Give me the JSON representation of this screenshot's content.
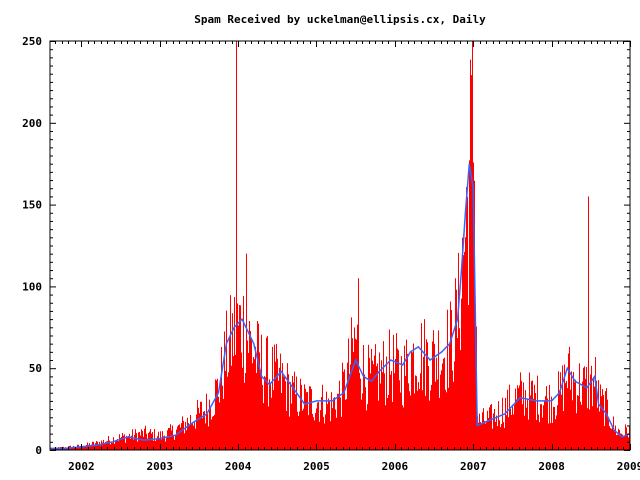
{
  "chart_data": {
    "type": "bar",
    "title": "Spam Received by uckelman@ellipsis.cx, Daily",
    "xlabel": "",
    "ylabel": "",
    "xlim": [
      2001.6,
      2009.0
    ],
    "ylim": [
      0,
      250
    ],
    "x_ticks": [
      2002,
      2003,
      2004,
      2005,
      2006,
      2007,
      2008,
      2009
    ],
    "y_ticks": [
      0,
      50,
      100,
      150,
      200,
      250
    ],
    "grid": false,
    "legend": "none",
    "colors": {
      "bars": "#ff0000",
      "average_line": "#3366ff",
      "axes": "#000000",
      "background": "#ffffff"
    },
    "series": [
      {
        "style": "bars",
        "x": [
          2001.6,
          2001.8,
          2002.0,
          2002.2,
          2002.4,
          2002.6,
          2002.8,
          2003.0,
          2003.2,
          2003.4,
          2003.6,
          2003.75,
          2003.85,
          2003.95,
          2004.05,
          2004.2,
          2004.3,
          2004.4,
          2004.55,
          2004.7,
          2004.85,
          2005.0,
          2005.2,
          2005.35,
          2005.5,
          2005.6,
          2005.7,
          2005.8,
          2005.95,
          2006.1,
          2006.2,
          2006.3,
          2006.45,
          2006.6,
          2006.7,
          2006.8,
          2006.85,
          2006.9,
          2006.95,
          2007.0,
          2007.05,
          2007.2,
          2007.4,
          2007.6,
          2007.8,
          2008.0,
          2008.1,
          2008.2,
          2008.3,
          2008.45,
          2008.55,
          2008.6,
          2008.7,
          2008.8,
          2008.9,
          2009.0
        ],
        "y": [
          1,
          2,
          3,
          5,
          8,
          10,
          12,
          10,
          14,
          22,
          30,
          45,
          70,
          85,
          90,
          70,
          60,
          55,
          50,
          40,
          35,
          35,
          32,
          45,
          80,
          55,
          50,
          55,
          60,
          55,
          65,
          70,
          65,
          70,
          75,
          95,
          130,
          160,
          200,
          240,
          20,
          22,
          30,
          40,
          38,
          35,
          40,
          55,
          48,
          45,
          50,
          35,
          30,
          15,
          12,
          15
        ],
        "peaks": [
          {
            "x": 2003.97,
            "y": 250
          },
          {
            "x": 2006.98,
            "y": 250
          },
          {
            "x": 2008.47,
            "y": 155
          },
          {
            "x": 2004.1,
            "y": 120
          },
          {
            "x": 2005.53,
            "y": 105
          }
        ]
      },
      {
        "style": "line",
        "x": [
          2001.6,
          2001.8,
          2002.0,
          2002.2,
          2002.4,
          2002.6,
          2002.8,
          2003.0,
          2003.2,
          2003.4,
          2003.6,
          2003.75,
          2003.85,
          2003.95,
          2004.05,
          2004.2,
          2004.3,
          2004.4,
          2004.55,
          2004.7,
          2004.85,
          2005.0,
          2005.2,
          2005.35,
          2005.5,
          2005.6,
          2005.7,
          2005.8,
          2005.95,
          2006.1,
          2006.2,
          2006.3,
          2006.45,
          2006.6,
          2006.7,
          2006.8,
          2006.85,
          2006.9,
          2006.95,
          2007.0,
          2007.05,
          2007.2,
          2007.4,
          2007.6,
          2007.8,
          2008.0,
          2008.1,
          2008.2,
          2008.3,
          2008.45,
          2008.55,
          2008.6,
          2008.7,
          2008.8,
          2008.9,
          2009.0
        ],
        "y": [
          1,
          1,
          2,
          3,
          5,
          8,
          6,
          7,
          9,
          16,
          22,
          35,
          65,
          75,
          80,
          65,
          45,
          40,
          48,
          38,
          28,
          30,
          30,
          35,
          55,
          45,
          42,
          48,
          55,
          52,
          60,
          63,
          55,
          60,
          65,
          80,
          110,
          145,
          175,
          160,
          15,
          18,
          22,
          32,
          30,
          30,
          35,
          50,
          42,
          38,
          45,
          28,
          22,
          12,
          8,
          10
        ]
      }
    ]
  }
}
